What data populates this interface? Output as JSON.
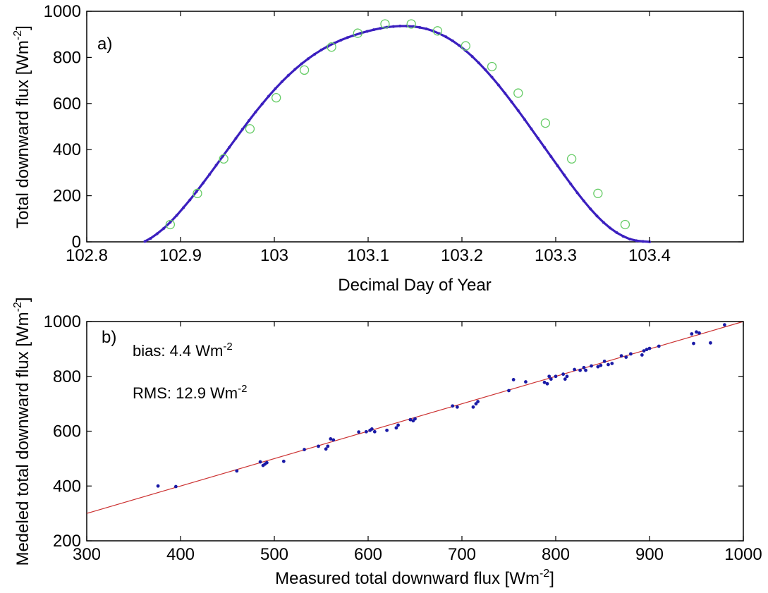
{
  "chart_data": [
    {
      "type": "scatter",
      "panel_label": "a)",
      "title": "",
      "xlabel": "Decimal Day of Year",
      "ylabel": "Total downward flux [Wm",
      "ylabel_sup": "-2",
      "ylabel_tail": "]",
      "xlim": [
        102.8,
        103.5
      ],
      "ylim": [
        0,
        1000
      ],
      "xticks": [
        102.8,
        102.9,
        103,
        103.1,
        103.2,
        103.3,
        103.4
      ],
      "xtick_labels": [
        "102.8",
        "102.9",
        "103",
        "103.1",
        "103.2",
        "103.3",
        "103.4"
      ],
      "yticks": [
        0,
        200,
        400,
        600,
        800,
        1000
      ],
      "ytick_labels": [
        "0",
        "200",
        "400",
        "600",
        "800",
        "1000"
      ],
      "grid": false,
      "legend": "none",
      "series": [
        {
          "marker": "dot",
          "color": "#3b1fbf",
          "x": [
            102.862,
            102.868,
            102.875,
            102.882,
            102.889,
            102.896,
            102.903,
            102.91,
            102.917,
            102.924,
            102.931,
            102.938,
            102.945,
            102.952,
            102.959,
            102.966,
            102.973,
            102.98,
            102.987,
            102.994,
            103.001,
            103.008,
            103.015,
            103.022,
            103.029,
            103.036,
            103.043,
            103.05,
            103.057,
            103.064,
            103.071,
            103.078,
            103.085,
            103.092,
            103.099,
            103.106,
            103.113,
            103.12,
            103.127,
            103.134,
            103.141,
            103.148,
            103.155,
            103.162,
            103.169,
            103.176,
            103.183,
            103.19,
            103.197,
            103.204,
            103.211,
            103.218,
            103.225,
            103.232,
            103.239,
            103.246,
            103.253,
            103.26,
            103.267,
            103.274,
            103.281,
            103.288,
            103.295,
            103.302,
            103.309,
            103.316,
            103.323,
            103.33,
            103.337,
            103.344,
            103.351,
            103.358,
            103.365,
            103.372,
            103.379,
            103.386,
            103.393,
            103.4
          ],
          "y": [
            2,
            15,
            35,
            58,
            85,
            115,
            148,
            182,
            218,
            255,
            293,
            332,
            371,
            410,
            449,
            488,
            526,
            563,
            598,
            632,
            664,
            694,
            722,
            748,
            772,
            794,
            814,
            832,
            848,
            862,
            875,
            886,
            896,
            905,
            913,
            920,
            926,
            931,
            934,
            936,
            936,
            934,
            930,
            924,
            915,
            903,
            889,
            872,
            852,
            829,
            804,
            776,
            746,
            714,
            680,
            644,
            607,
            569,
            530,
            490,
            450,
            410,
            370,
            330,
            290,
            251,
            213,
            177,
            143,
            112,
            84,
            60,
            40,
            24,
            12,
            5,
            2,
            0
          ]
        },
        {
          "marker": "open-circle",
          "color": "#66cc66",
          "x": [
            102.889,
            102.918,
            102.946,
            102.974,
            103.002,
            103.032,
            103.061,
            103.089,
            103.118,
            103.146,
            103.174,
            103.204,
            103.232,
            103.26,
            103.289,
            103.317,
            103.345,
            103.374
          ],
          "y": [
            75,
            210,
            360,
            490,
            625,
            745,
            845,
            905,
            945,
            945,
            915,
            850,
            760,
            645,
            515,
            360,
            210,
            75
          ]
        }
      ]
    },
    {
      "type": "scatter",
      "panel_label": "b)",
      "title": "",
      "xlabel": "Measured total downward flux [Wm",
      "xlabel_sup": "-2",
      "xlabel_tail": "]",
      "ylabel": "Medeled total downward flux [Wm",
      "ylabel_sup": "-2",
      "ylabel_tail": "]",
      "xlim": [
        300,
        1000
      ],
      "ylim": [
        200,
        1000
      ],
      "xticks": [
        300,
        400,
        500,
        600,
        700,
        800,
        900,
        1000
      ],
      "xtick_labels": [
        "300",
        "400",
        "500",
        "600",
        "700",
        "800",
        "900",
        "1000"
      ],
      "yticks": [
        200,
        400,
        600,
        800,
        1000
      ],
      "ytick_labels": [
        "200",
        "400",
        "600",
        "800",
        "1000"
      ],
      "grid": false,
      "legend": "none",
      "annotations": [
        {
          "text": "bias: 4.4 Wm",
          "sup": "-2"
        },
        {
          "text": "RMS: 12.9 Wm",
          "sup": "-2"
        }
      ],
      "line": {
        "color": "#cc3333",
        "x": [
          300,
          1000
        ],
        "y": [
          300,
          1000
        ]
      },
      "series": [
        {
          "marker": "dot",
          "color": "#1a1aa6",
          "x": [
            376,
            395,
            460,
            485,
            488,
            490,
            492,
            510,
            532,
            547,
            555,
            557,
            560,
            563,
            590,
            598,
            602,
            604,
            607,
            620,
            630,
            632,
            645,
            648,
            650,
            690,
            695,
            712,
            715,
            717,
            750,
            755,
            768,
            788,
            791,
            793,
            795,
            800,
            808,
            810,
            812,
            820,
            826,
            830,
            832,
            838,
            845,
            848,
            852,
            856,
            860,
            870,
            875,
            880,
            892,
            894,
            897,
            900,
            910,
            945,
            947,
            950,
            953,
            965,
            980
          ],
          "y": [
            400,
            398,
            455,
            488,
            475,
            480,
            485,
            490,
            533,
            545,
            535,
            545,
            572,
            568,
            597,
            598,
            603,
            608,
            598,
            603,
            612,
            622,
            642,
            638,
            645,
            692,
            688,
            688,
            700,
            708,
            748,
            788,
            780,
            778,
            773,
            800,
            790,
            800,
            808,
            790,
            800,
            825,
            822,
            832,
            822,
            838,
            835,
            840,
            855,
            843,
            847,
            875,
            870,
            882,
            878,
            893,
            898,
            902,
            910,
            955,
            920,
            962,
            958,
            922,
            988
          ]
        }
      ]
    }
  ]
}
